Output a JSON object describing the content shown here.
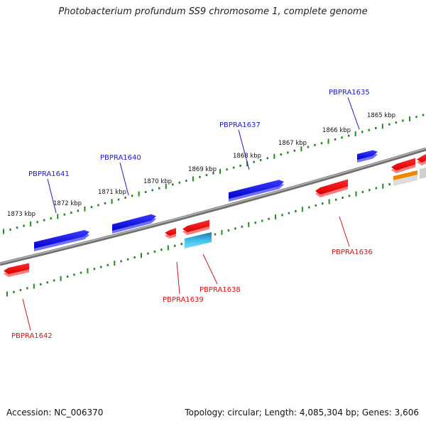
{
  "title": "Photobacterium profundum SS9 chromosome 1, complete genome",
  "accession": "Accession: NC_006370",
  "summary": "Topology: circular; Length: 4,085,304 bp; Genes: 3,606",
  "colors": {
    "forward_gene": "#1010e0",
    "reverse_gene": "#ee0000",
    "forward_label": "#1a1acc",
    "reverse_label": "#dd1111",
    "ruler": "#228b22",
    "backbone": "#808080",
    "cyan_feature": "#22aadd",
    "orange_feature": "#ee8800",
    "gray_feature": "#bbbbbb"
  },
  "ruler_labels": [
    "1865 kbp",
    "1866 kbp",
    "1867 kbp",
    "1868 kbp",
    "1869 kbp",
    "1870 kbp",
    "1871 kbp",
    "1872 kbp",
    "1873 kbp"
  ],
  "forward_genes": [
    "PBPRA1635",
    "PBPRA1637",
    "PBPRA1640",
    "PBPRA1641"
  ],
  "reverse_genes": [
    "PBPRA1636",
    "PBPRA1638",
    "PBPRA1639",
    "PBPRA1642"
  ]
}
